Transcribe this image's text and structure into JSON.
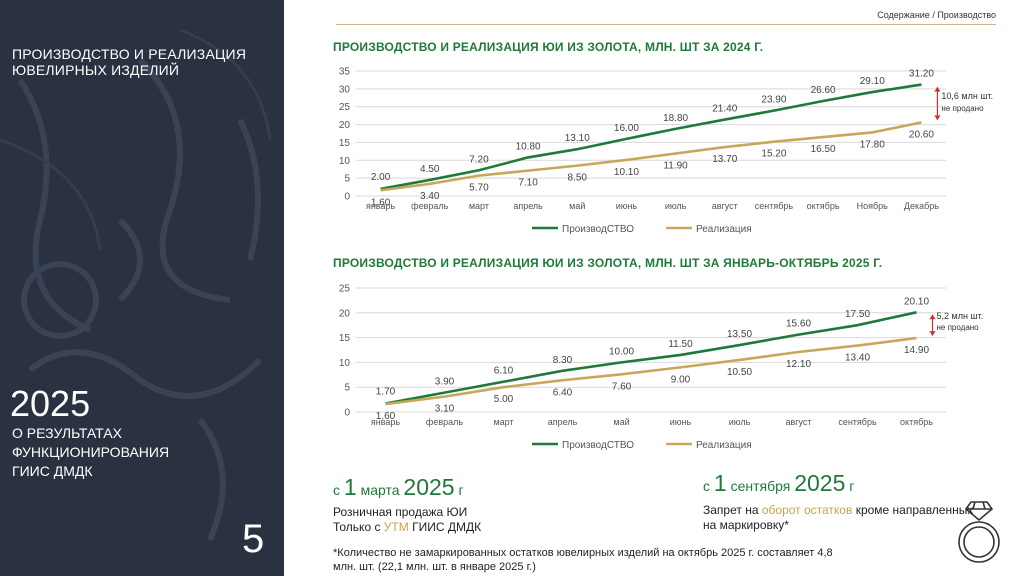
{
  "sidebar": {
    "title_line1": "ПРОИЗВОДСТВО И РЕАЛИЗАЦИЯ",
    "title_line2": "ЮВЕЛИРНЫХ ИЗДЕЛИЙ",
    "year": "2025",
    "sub_line1": "О РЕЗУЛЬТАТАХ",
    "sub_line2": "ФУНКЦИОНИРОВАНИЯ",
    "sub_line3": "ГИИС ДМДК",
    "page_number": "5"
  },
  "breadcrumb": "Содержание / Производство",
  "chart_data": [
    {
      "type": "line",
      "title": "ПРОИЗВОДСТВО И РЕАЛИЗАЦИЯ ЮИ ИЗ ЗОЛОТА, МЛН. ШТ ЗА 2024 Г.",
      "categories": [
        "январь",
        "февраль",
        "март",
        "апрель",
        "май",
        "июнь",
        "июль",
        "август",
        "сентябрь",
        "октябрь",
        "Ноябрь",
        "Декабрь"
      ],
      "ylim": [
        0,
        35
      ],
      "yticks": [
        "0",
        "5",
        "10",
        "15",
        "20",
        "25",
        "30",
        "35"
      ],
      "series": [
        {
          "name": "ПроизводСТВО",
          "color": "#1f7a3a",
          "values": [
            2.0,
            4.5,
            7.2,
            10.8,
            13.1,
            16.0,
            18.8,
            21.4,
            23.9,
            26.6,
            29.1,
            31.2
          ],
          "labels": [
            "2.00",
            "4.50",
            "7.20",
            "10.80",
            "13.10",
            "16.00",
            "18.80",
            "21.40",
            "23.90",
            "26.60",
            "29.10",
            "31.20"
          ]
        },
        {
          "name": "Реализация",
          "color": "#c8a65a",
          "values": [
            1.6,
            3.4,
            5.7,
            7.1,
            8.5,
            10.1,
            11.9,
            13.7,
            15.2,
            16.5,
            17.8,
            20.6
          ],
          "labels": [
            "1.60",
            "3.40",
            "5.70",
            "7.10",
            "8.50",
            "10.10",
            "11.90",
            "13.70",
            "15.20",
            "16.50",
            "17.80",
            "20.60"
          ]
        }
      ],
      "annotation_line1": "10,6 млн шт.",
      "annotation_line2": "не продано"
    },
    {
      "type": "line",
      "title": "ПРОИЗВОДСТВО И РЕАЛИЗАЦИЯ ЮИ ИЗ ЗОЛОТА, МЛН. ШТ ЗА ЯНВАРЬ-ОКТЯБРЬ 2025 Г.",
      "categories": [
        "январь",
        "февраль",
        "март",
        "апрель",
        "май",
        "июнь",
        "июль",
        "август",
        "сентябрь",
        "октябрь"
      ],
      "ylim": [
        0,
        25
      ],
      "yticks": [
        "0",
        "5",
        "10",
        "15",
        "20",
        "25"
      ],
      "series": [
        {
          "name": "ПроизводСТВО",
          "color": "#1f7a3a",
          "values": [
            1.7,
            3.9,
            6.1,
            8.3,
            10.0,
            11.5,
            13.5,
            15.6,
            17.5,
            20.1
          ],
          "labels": [
            "1.70",
            "3.90",
            "6.10",
            "8.30",
            "10.00",
            "11.50",
            "13.50",
            "15.60",
            "17.50",
            "20.10"
          ]
        },
        {
          "name": "Реализация",
          "color": "#c8a65a",
          "values": [
            1.6,
            3.1,
            5.0,
            6.4,
            7.6,
            9.0,
            10.5,
            12.1,
            13.4,
            14.9
          ],
          "labels": [
            "1.60",
            "3.10",
            "5.00",
            "6.40",
            "7.60",
            "9.00",
            "10.50",
            "12.10",
            "13.40",
            "14.90"
          ]
        }
      ],
      "annotation_line1": "5,2 млн шт.",
      "annotation_line2": "не продано"
    }
  ],
  "left_block": {
    "prefix": "с",
    "date_num": "1",
    "month": "марта",
    "year": "2025",
    "suffix": "г",
    "line1": "Розничная продажа ЮИ",
    "line2_pre": "Только с ",
    "line2_hl": "УТМ",
    "line2_post": " ГИИС ДМДК"
  },
  "right_block": {
    "prefix": "с",
    "date_num": "1",
    "month": "сентября",
    "year": "2025",
    "suffix": "г",
    "line1_pre": "Запрет на ",
    "line1_hl": "оборот остатков",
    "line1_post": " кроме направленных",
    "line2": "на маркировку*"
  },
  "footnote_line1": "*Количество не замаркированных остатков ювелирных изделий на октябрь 2025 г. составляет 4,8",
  "footnote_line2": "млн. шт. (22,1 млн. шт. в январе 2025 г.)",
  "colors": {
    "sidebar_bg": "#2a3140",
    "green": "#1f7a3a",
    "gold": "#c8a65a"
  },
  "icons": {
    "ring": "diamond-ring-icon"
  }
}
